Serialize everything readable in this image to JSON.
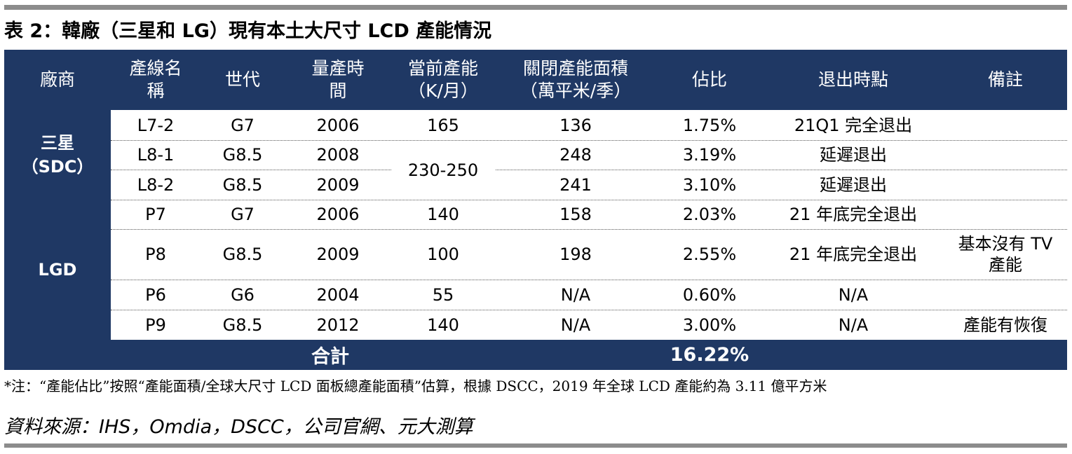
{
  "title": "表 2：韓廠（三星和 LG）現有本土大尺寸 LCD 產能情況",
  "headers": [
    [
      "廠商"
    ],
    [
      "產線名",
      "稱"
    ],
    [
      "世代"
    ],
    [
      "量產時",
      "間"
    ],
    [
      "當前產能",
      "（K/月）"
    ],
    [
      "關閉產能面積",
      "（萬平米/季）"
    ],
    [
      "佔比"
    ],
    [
      "退出時點"
    ],
    [
      "備註"
    ]
  ],
  "vendors": {
    "sdc": [
      "三星",
      "（SDC）"
    ],
    "lgd": "LGD"
  },
  "rows": [
    {
      "line": "L7-2",
      "gen": "G7",
      "year": "2006",
      "capacity": "165",
      "closed_area": "136",
      "share": "1.75%",
      "exit": "21Q1 完全退出",
      "note": ""
    },
    {
      "line": "L8-1",
      "gen": "G8.5",
      "year": "2008",
      "capacity": "230-250",
      "closed_area": "248",
      "share": "3.19%",
      "exit": "延遲退出",
      "note": ""
    },
    {
      "line": "L8-2",
      "gen": "G8.5",
      "year": "2009",
      "capacity": "",
      "closed_area": "241",
      "share": "3.10%",
      "exit": "延遲退出",
      "note": ""
    },
    {
      "line": "P7",
      "gen": "G7",
      "year": "2006",
      "capacity": "140",
      "closed_area": "158",
      "share": "2.03%",
      "exit": "21 年底完全退出",
      "note": ""
    },
    {
      "line": "P8",
      "gen": "G8.5",
      "year": "2009",
      "capacity": "100",
      "closed_area": "198",
      "share": "2.55%",
      "exit": "21 年底完全退出",
      "note": "基本沒有 TV 產能"
    },
    {
      "line": "P6",
      "gen": "G6",
      "year": "2004",
      "capacity": "55",
      "closed_area": "N/A",
      "share": "0.60%",
      "exit": "N/A",
      "note": ""
    },
    {
      "line": "P9",
      "gen": "G8.5",
      "year": "2012",
      "capacity": "140",
      "closed_area": "N/A",
      "share": "3.00%",
      "exit": "N/A",
      "note": "產能有恢復"
    }
  ],
  "total": {
    "label": "合計",
    "share": "16.22%"
  },
  "footnote": "*注：“產能佔比”按照“產能面積/全球大尺寸 LCD 面板總產能面積”估算，根據 DSCC，2019 年全球 LCD 產能約為 3.11 億平方米",
  "source": "資料來源：IHS，Omdia，DSCC，公司官網、元大測算",
  "colors": {
    "header_bg": "#1f3864",
    "rule": "#8c8c8c"
  }
}
